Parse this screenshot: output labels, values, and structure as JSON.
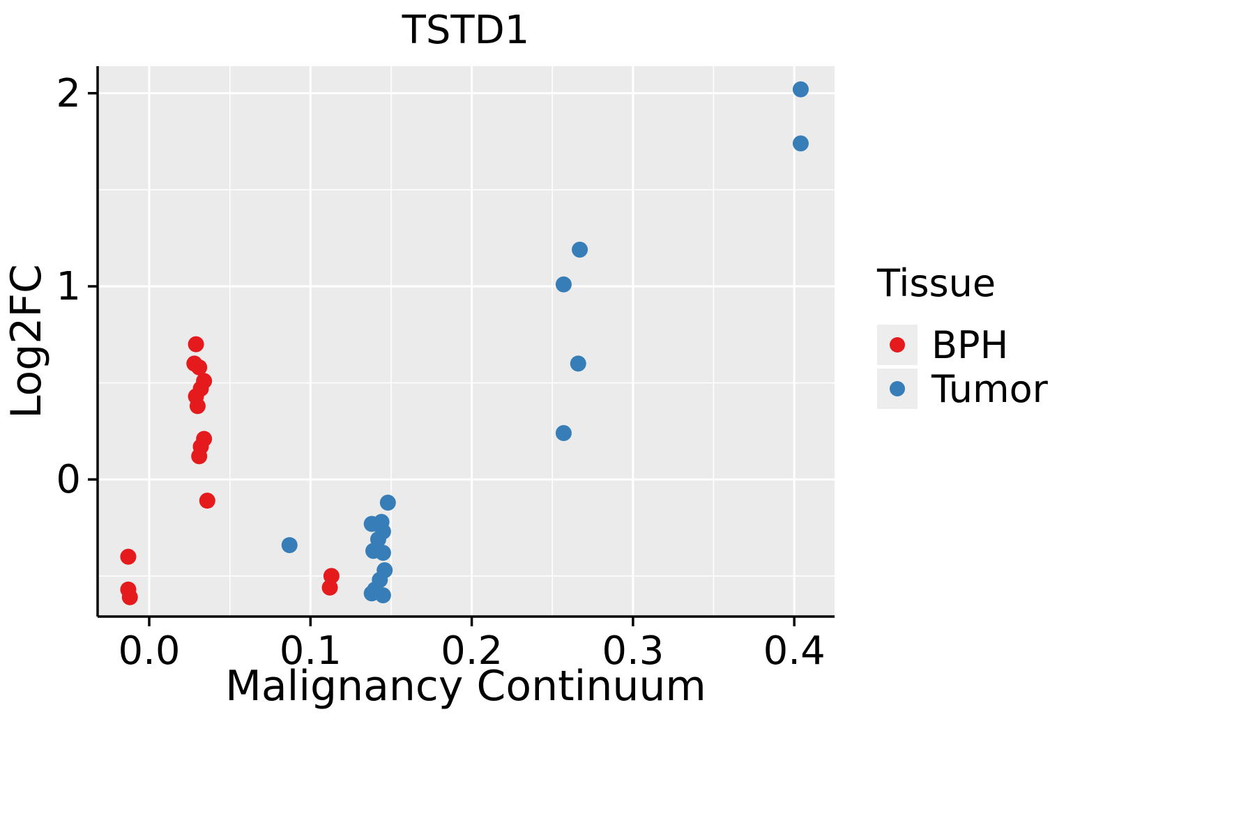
{
  "figure": {
    "background": "#ffffff",
    "panel_background": "#EBEBEB",
    "grid_color": "#ffffff",
    "axis_color": "#000000",
    "text_color": "#000000",
    "legend_key_background": "#EDEDED"
  },
  "chart_data": {
    "type": "scatter",
    "title": "TSTD1",
    "xlabel": "Malignancy Continuum",
    "ylabel": "Log2FC",
    "xlim": [
      -0.032,
      0.425
    ],
    "ylim": [
      -0.71,
      2.14
    ],
    "x_ticks": [
      0.0,
      0.1,
      0.2,
      0.3,
      0.4
    ],
    "x_tick_labels": [
      "0.0",
      "0.1",
      "0.2",
      "0.3",
      "0.4"
    ],
    "y_ticks": [
      0,
      1,
      2
    ],
    "y_tick_labels": [
      "0",
      "1",
      "2"
    ],
    "grid": "on",
    "legend": {
      "title": "Tissue",
      "position": "right"
    },
    "series": [
      {
        "name": "BPH",
        "color": "#E41A1C",
        "points": [
          [
            -0.013,
            -0.4
          ],
          [
            -0.013,
            -0.57
          ],
          [
            -0.012,
            -0.61
          ],
          [
            0.029,
            0.7
          ],
          [
            0.028,
            0.6
          ],
          [
            0.031,
            0.58
          ],
          [
            0.034,
            0.51
          ],
          [
            0.032,
            0.47
          ],
          [
            0.029,
            0.43
          ],
          [
            0.03,
            0.38
          ],
          [
            0.034,
            0.21
          ],
          [
            0.032,
            0.17
          ],
          [
            0.031,
            0.12
          ],
          [
            0.036,
            -0.11
          ],
          [
            0.113,
            -0.5
          ],
          [
            0.112,
            -0.56
          ]
        ]
      },
      {
        "name": "Tumor",
        "color": "#377EB8",
        "points": [
          [
            0.087,
            -0.34
          ],
          [
            0.138,
            -0.23
          ],
          [
            0.144,
            -0.22
          ],
          [
            0.148,
            -0.12
          ],
          [
            0.145,
            -0.27
          ],
          [
            0.142,
            -0.31
          ],
          [
            0.139,
            -0.37
          ],
          [
            0.145,
            -0.38
          ],
          [
            0.146,
            -0.47
          ],
          [
            0.143,
            -0.52
          ],
          [
            0.14,
            -0.57
          ],
          [
            0.138,
            -0.59
          ],
          [
            0.145,
            -0.6
          ],
          [
            0.257,
            0.24
          ],
          [
            0.257,
            1.01
          ],
          [
            0.267,
            1.19
          ],
          [
            0.266,
            0.6
          ],
          [
            0.404,
            2.02
          ],
          [
            0.404,
            1.74
          ]
        ]
      }
    ]
  }
}
